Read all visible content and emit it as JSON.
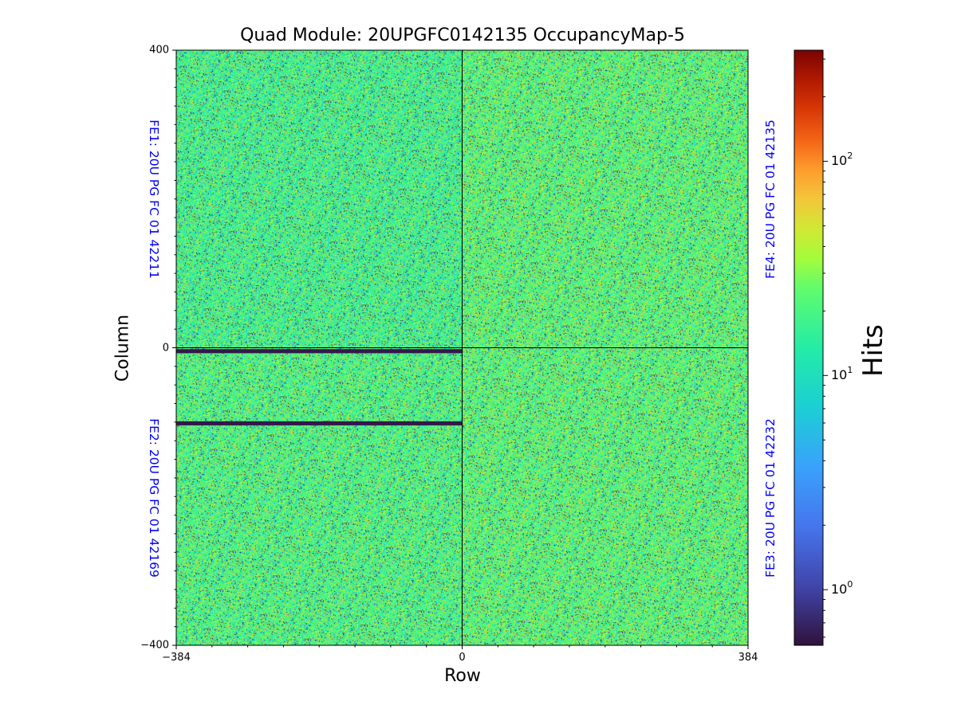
{
  "chart_data": {
    "type": "heatmap",
    "title": "Quad Module: 20UPGFC0142135 OccupancyMap-5",
    "xlabel": "Row",
    "ylabel": "Column",
    "xlim": [
      -384,
      384
    ],
    "ylim": [
      -400,
      400
    ],
    "x_ticks": [
      "−384",
      "0",
      "384"
    ],
    "y_ticks": [
      "400",
      "0",
      "−400"
    ],
    "colormap": "turbo",
    "color_scale": "log",
    "colorbar": {
      "label": "Hits",
      "range": [
        0.55,
        330
      ],
      "ticks": [
        {
          "value": 1,
          "base": "10",
          "exp": "0"
        },
        {
          "value": 10,
          "base": "10",
          "exp": "1"
        },
        {
          "value": 100,
          "base": "10",
          "exp": "2"
        }
      ]
    },
    "chips": [
      {
        "name": "FE1: 20U PG FC 01 42211",
        "quadrant": "top-left",
        "x_range": [
          -384,
          0
        ],
        "y_range": [
          0,
          400
        ],
        "typical_hits": 18
      },
      {
        "name": "FE4: 20U PG FC 01 42135",
        "quadrant": "top-right",
        "x_range": [
          0,
          384
        ],
        "y_range": [
          0,
          400
        ],
        "typical_hits": 22
      },
      {
        "name": "FE2: 20U PG FC 01 42169",
        "quadrant": "bottom-left",
        "x_range": [
          -384,
          0
        ],
        "y_range": [
          -400,
          0
        ],
        "typical_hits": 20
      },
      {
        "name": "FE3: 20U PG FC 01 42232",
        "quadrant": "bottom-right",
        "x_range": [
          0,
          384
        ],
        "y_range": [
          -400,
          0
        ],
        "typical_hits": 22
      }
    ],
    "dead_bands": [
      {
        "chip": "FE2",
        "x_range": [
          -384,
          0
        ],
        "y_range": [
          -6,
          -2
        ],
        "hits": 0.6
      },
      {
        "chip": "FE2",
        "x_range": [
          -384,
          0
        ],
        "y_range": [
          -103,
          -99
        ],
        "hits": 0.6
      }
    ]
  },
  "fe_labels": {
    "fe1": "FE1: 20U PG FC 01 42211",
    "fe2": "FE2: 20U PG FC 01 42169",
    "fe3": "FE3: 20U PG FC 01 42232",
    "fe4": "FE4: 20U PG FC 01 42135"
  }
}
